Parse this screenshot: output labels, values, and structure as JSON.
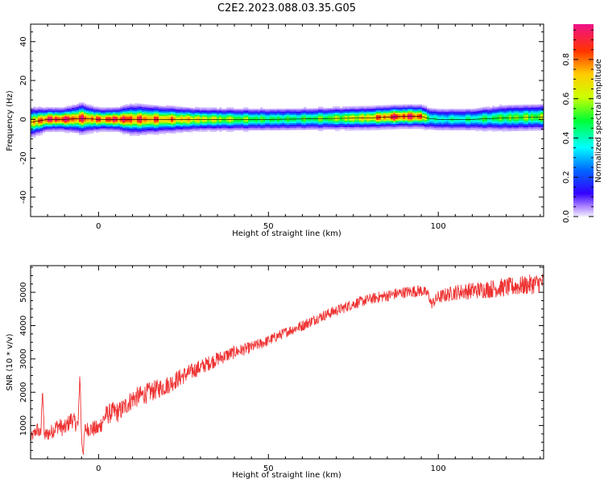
{
  "figure_title": "C2E2.2023.088.03.35.G05",
  "colorbar": {
    "label": "Normalized spectral amplitude",
    "ticks": [
      "0.0",
      "0.2",
      "0.4",
      "0.6",
      "0.8"
    ],
    "values": [
      0.0,
      0.2,
      0.4,
      0.6,
      0.8
    ],
    "range": [
      0.0,
      0.98
    ]
  },
  "chart_data": [
    {
      "type": "heatmap",
      "title": "",
      "xlabel": "Height of straight line (km)",
      "ylabel": "Frequency (Hz)",
      "xlim": [
        -20,
        131
      ],
      "ylim": [
        -50,
        49
      ],
      "x_ticks": [
        0,
        50,
        100
      ],
      "x_tick_labels": [
        "0",
        "50",
        "100"
      ],
      "y_ticks": [
        40,
        20,
        0,
        -20,
        -40
      ],
      "y_tick_labels": [
        "40",
        "20",
        "0",
        "-20",
        "-40"
      ],
      "ridge": {
        "description": "spectral energy concentrated near 0 Hz",
        "x": [
          -20,
          -15,
          -10,
          -5,
          0,
          5,
          10,
          20,
          30,
          40,
          50,
          60,
          70,
          80,
          85,
          90,
          95,
          97,
          100,
          110,
          120,
          131
        ],
        "center_hz": [
          -1.5,
          0,
          0,
          0.5,
          0,
          0,
          0,
          0,
          0,
          0,
          0,
          0.2,
          0.5,
          0.8,
          1.2,
          1.5,
          1.5,
          0.5,
          0,
          0,
          0.8,
          1.2
        ],
        "peak_amp": [
          0.7,
          0.95,
          0.95,
          0.9,
          0.85,
          0.95,
          0.9,
          0.8,
          0.7,
          0.6,
          0.5,
          0.5,
          0.6,
          0.75,
          0.9,
          0.95,
          0.9,
          0.5,
          0.4,
          0.45,
          0.55,
          0.6
        ],
        "width_hz": [
          4,
          3,
          3,
          4,
          3,
          3,
          4,
          3.5,
          3,
          3,
          3,
          3,
          3,
          3,
          3,
          3,
          3,
          3,
          3,
          3,
          3.5,
          3.5
        ]
      }
    },
    {
      "type": "line",
      "title": "",
      "xlabel": "Height of straight line (km)",
      "ylabel": "SNR (10 * v/v)",
      "xlim": [
        -20,
        131
      ],
      "ylim": [
        0,
        5800
      ],
      "x_ticks": [
        0,
        50,
        100
      ],
      "x_tick_labels": [
        "0",
        "50",
        "100"
      ],
      "y_ticks": [
        1000,
        2000,
        3000,
        4000,
        5000
      ],
      "y_tick_labels": [
        "1000",
        "2000",
        "3000",
        "4000",
        "5000"
      ],
      "series": [
        {
          "name": "SNR",
          "color": "#ee3333",
          "x": [
            -20,
            -18,
            -17,
            -16.5,
            -16,
            -14,
            -12,
            -10,
            -8,
            -6,
            -5.5,
            -5,
            -4.5,
            -4,
            -2,
            0,
            2,
            4,
            6,
            8,
            10,
            15,
            20,
            25,
            30,
            35,
            40,
            45,
            50,
            55,
            60,
            65,
            70,
            75,
            80,
            85,
            90,
            95,
            97,
            98,
            100,
            105,
            110,
            115,
            120,
            125,
            131
          ],
          "values": [
            600,
            900,
            700,
            2200,
            700,
            800,
            1000,
            900,
            1200,
            1000,
            2600,
            600,
            200,
            900,
            900,
            900,
            1300,
            1400,
            1400,
            1600,
            1800,
            2000,
            2200,
            2500,
            2750,
            3000,
            3200,
            3350,
            3550,
            3800,
            4000,
            4250,
            4450,
            4650,
            4800,
            4900,
            5000,
            5050,
            4950,
            4650,
            4850,
            5000,
            5050,
            5100,
            5150,
            5200,
            5300
          ],
          "noise_amp": [
            150,
            220,
            200,
            150,
            200,
            220,
            250,
            250,
            250,
            250,
            100,
            300,
            150,
            200,
            250,
            250,
            300,
            300,
            300,
            300,
            300,
            300,
            280,
            260,
            230,
            210,
            190,
            170,
            160,
            150,
            160,
            160,
            160,
            160,
            160,
            170,
            170,
            180,
            150,
            150,
            200,
            230,
            250,
            270,
            280,
            290,
            300
          ]
        }
      ]
    }
  ]
}
